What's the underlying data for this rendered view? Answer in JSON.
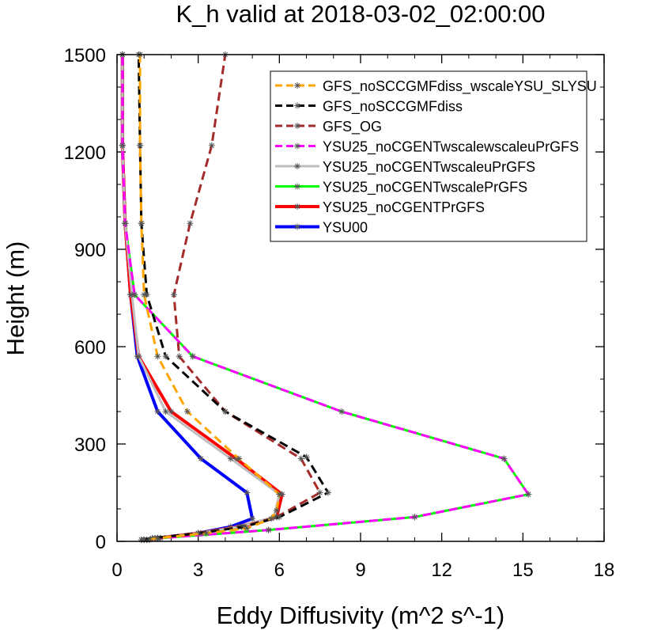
{
  "chart_data": {
    "type": "line",
    "title": "K_h valid at 2018-03-02_02:00:00",
    "xlabel": "Eddy Diffusivity (m^2 s^-1)",
    "ylabel": "Height (m)",
    "xlim": [
      0,
      18
    ],
    "ylim": [
      0,
      1500
    ],
    "xticks": [
      "0",
      "3",
      "6",
      "9",
      "12",
      "15",
      "18"
    ],
    "yticks": [
      "0",
      "300",
      "600",
      "900",
      "1200",
      "1500"
    ],
    "grid": false,
    "legend_position": "top-right",
    "series": [
      {
        "name": "GFS_noSCCGMFdiss_wscaleYSU_SLYSU",
        "color": "#ffa500",
        "dash": "dash",
        "width": 3,
        "points": [
          [
            1.2,
            5
          ],
          [
            1.5,
            10
          ],
          [
            3.3,
            25
          ],
          [
            4.8,
            40
          ],
          [
            5.7,
            70
          ],
          [
            5.9,
            95
          ],
          [
            6.0,
            145
          ],
          [
            4.5,
            255
          ],
          [
            2.6,
            400
          ],
          [
            1.5,
            570
          ],
          [
            1.0,
            760
          ],
          [
            0.9,
            980
          ],
          [
            0.85,
            1220
          ],
          [
            0.85,
            1500
          ]
        ]
      },
      {
        "name": "GFS_noSCCGMFdiss",
        "color": "#000000",
        "dash": "dash",
        "width": 3,
        "points": [
          [
            1.0,
            5
          ],
          [
            1.3,
            10
          ],
          [
            3.0,
            25
          ],
          [
            4.7,
            45
          ],
          [
            6.0,
            75
          ],
          [
            7.8,
            150
          ],
          [
            7.0,
            260
          ],
          [
            4.0,
            400
          ],
          [
            1.8,
            570
          ],
          [
            1.1,
            760
          ],
          [
            0.9,
            980
          ],
          [
            0.85,
            1220
          ],
          [
            0.8,
            1500
          ]
        ]
      },
      {
        "name": "GFS_OG",
        "color": "#a52a2a",
        "dash": "dash",
        "width": 3,
        "points": [
          [
            1.0,
            5
          ],
          [
            1.4,
            10
          ],
          [
            3.1,
            25
          ],
          [
            4.6,
            45
          ],
          [
            5.9,
            75
          ],
          [
            7.5,
            150
          ],
          [
            6.8,
            255
          ],
          [
            4.0,
            400
          ],
          [
            2.3,
            570
          ],
          [
            2.1,
            760
          ],
          [
            2.7,
            980
          ],
          [
            3.5,
            1220
          ],
          [
            4.0,
            1500
          ]
        ]
      },
      {
        "name": "YSU25_noCGENTwscalewscaleuPrGFS",
        "color": "#ff00ff",
        "dash": "dash",
        "width": 3,
        "points": [
          [
            0.9,
            5
          ],
          [
            1.6,
            10
          ],
          [
            5.6,
            35
          ],
          [
            11.0,
            75
          ],
          [
            15.2,
            145
          ],
          [
            14.3,
            255
          ],
          [
            8.3,
            400
          ],
          [
            2.8,
            570
          ],
          [
            0.65,
            760
          ],
          [
            0.3,
            980
          ],
          [
            0.2,
            1220
          ],
          [
            0.2,
            1500
          ]
        ]
      },
      {
        "name": "YSU25_noCGENTwscaleuPrGFS",
        "color": "#bebebe",
        "dash": "solid",
        "width": 3,
        "points": [
          [
            1.1,
            5
          ],
          [
            1.5,
            10
          ],
          [
            3.0,
            25
          ],
          [
            4.5,
            45
          ],
          [
            5.8,
            75
          ],
          [
            6.0,
            145
          ],
          [
            4.2,
            255
          ],
          [
            1.8,
            400
          ],
          [
            0.8,
            570
          ],
          [
            0.55,
            760
          ],
          [
            0.3,
            980
          ],
          [
            0.2,
            1220
          ],
          [
            0.2,
            1500
          ]
        ]
      },
      {
        "name": "YSU25_noCGENTwscalePrGFS",
        "color": "#00ff00",
        "dash": "solid",
        "width": 3,
        "points": [
          [
            0.9,
            5
          ],
          [
            1.6,
            10
          ],
          [
            5.6,
            35
          ],
          [
            11.0,
            75
          ],
          [
            15.2,
            145
          ],
          [
            14.3,
            255
          ],
          [
            8.3,
            400
          ],
          [
            2.8,
            570
          ],
          [
            0.65,
            760
          ],
          [
            0.3,
            980
          ],
          [
            0.2,
            1220
          ],
          [
            0.2,
            1500
          ]
        ]
      },
      {
        "name": "YSU25_noCGENTPrGFS",
        "color": "#ff0000",
        "dash": "solid",
        "width": 4,
        "points": [
          [
            1.1,
            5
          ],
          [
            1.5,
            10
          ],
          [
            3.0,
            25
          ],
          [
            4.5,
            45
          ],
          [
            5.9,
            75
          ],
          [
            6.1,
            145
          ],
          [
            4.4,
            255
          ],
          [
            2.0,
            400
          ],
          [
            0.8,
            570
          ],
          [
            0.5,
            760
          ],
          [
            0.3,
            980
          ],
          [
            0.2,
            1220
          ],
          [
            0.2,
            1500
          ]
        ]
      },
      {
        "name": "YSU00",
        "color": "#0000ff",
        "dash": "solid",
        "width": 4,
        "points": [
          [
            1.1,
            5
          ],
          [
            1.5,
            10
          ],
          [
            3.0,
            25
          ],
          [
            4.2,
            45
          ],
          [
            5.0,
            70
          ],
          [
            4.8,
            150
          ],
          [
            3.1,
            255
          ],
          [
            1.5,
            400
          ],
          [
            0.75,
            570
          ],
          [
            0.5,
            760
          ],
          [
            0.3,
            980
          ],
          [
            0.2,
            1220
          ],
          [
            0.2,
            1500
          ]
        ]
      }
    ]
  }
}
